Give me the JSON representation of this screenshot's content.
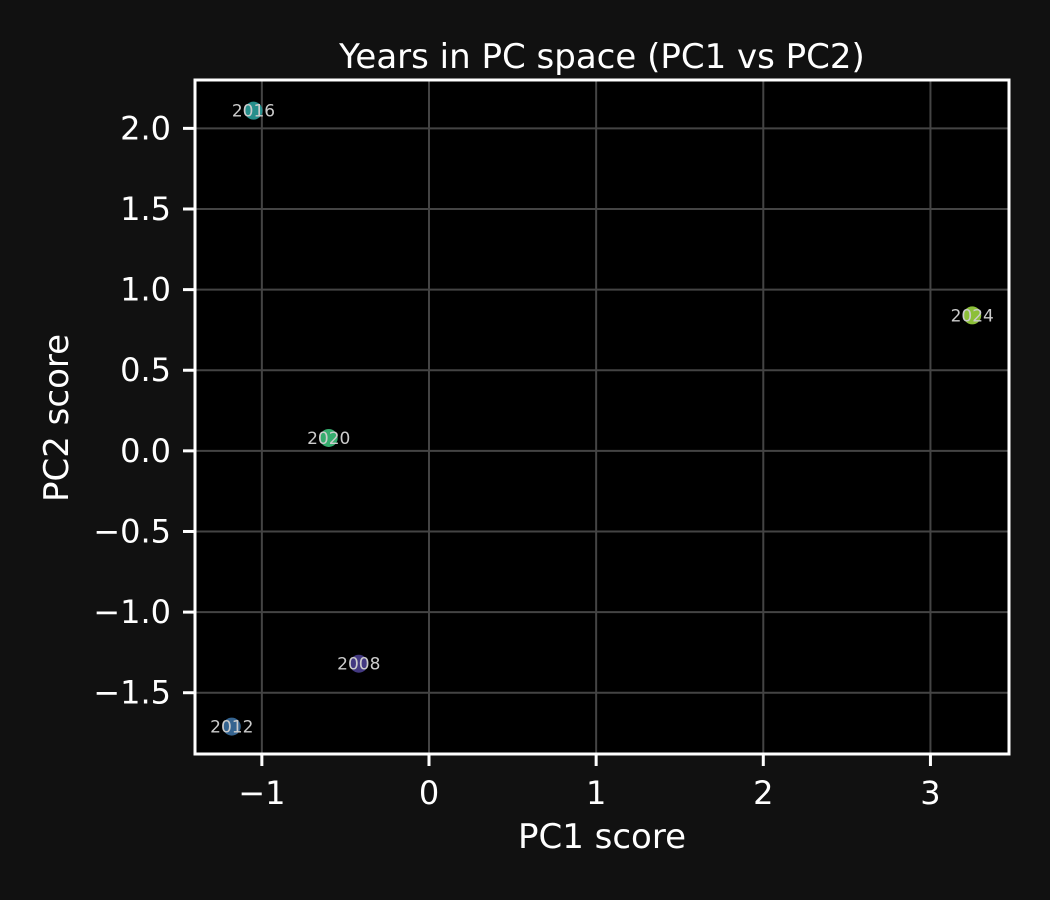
{
  "chart_data": {
    "type": "scatter",
    "title": "Years in PC space (PC1 vs PC2)",
    "xlabel": "PC1 score",
    "ylabel": "PC2 score",
    "xlim": [
      -1.4,
      3.47
    ],
    "ylim": [
      -1.88,
      2.3
    ],
    "xticks": [
      -1,
      0,
      1,
      2,
      3
    ],
    "yticks": [
      -1.5,
      -1.0,
      -0.5,
      0.0,
      0.5,
      1.0,
      1.5,
      2.0
    ],
    "xtick_labels": [
      "−1",
      "0",
      "1",
      "2",
      "3"
    ],
    "ytick_labels": [
      "−1.5",
      "−1.0",
      "−0.5",
      "0.0",
      "0.5",
      "1.0",
      "1.5",
      "2.0"
    ],
    "grid": true,
    "points": [
      {
        "label": "2008",
        "x": -0.42,
        "y": -1.32,
        "color": "#4a3f8f"
      },
      {
        "label": "2012",
        "x": -1.18,
        "y": -1.71,
        "color": "#3b6fa0"
      },
      {
        "label": "2016",
        "x": -1.05,
        "y": 2.11,
        "color": "#2a9d9a"
      },
      {
        "label": "2020",
        "x": -0.6,
        "y": 0.08,
        "color": "#3bbf7a"
      },
      {
        "label": "2024",
        "x": 3.25,
        "y": 0.84,
        "color": "#9bd43f"
      }
    ]
  },
  "colors": {
    "background": "#111111",
    "plot_background": "#000000",
    "grid": "#444444",
    "axis": "#ffffff"
  }
}
